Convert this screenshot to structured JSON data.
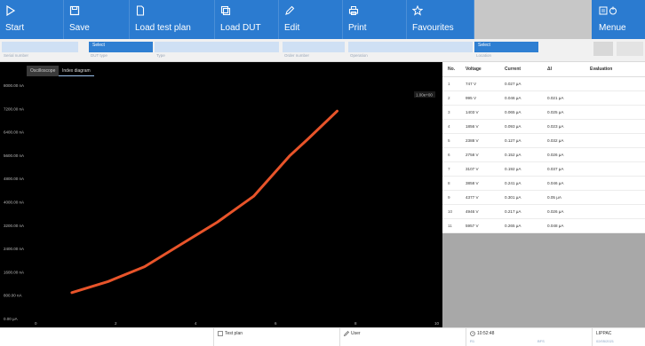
{
  "toolbar": {
    "buttons": [
      {
        "label": "Start",
        "icon": "play-icon"
      },
      {
        "label": "Save",
        "icon": "save-icon"
      },
      {
        "label": "Load test plan",
        "icon": "document-icon"
      },
      {
        "label": "Load DUT",
        "icon": "copy-icon"
      },
      {
        "label": "Edit",
        "icon": "pencil-icon"
      },
      {
        "label": "Print",
        "icon": "printer-icon"
      },
      {
        "label": "Favourites",
        "icon": "star-icon"
      },
      {
        "label": "Menue",
        "icon": "menu-power-icon"
      }
    ]
  },
  "fields": [
    {
      "value": "",
      "caption": "Serial number"
    },
    {
      "value": "Select",
      "caption": "DUT type"
    },
    {
      "value": "",
      "caption": "Type"
    },
    {
      "value": "",
      "caption": "Order number"
    },
    {
      "value": "",
      "caption": "Operation"
    },
    {
      "value": "Select",
      "caption": "Location"
    }
  ],
  "chart_tabs": [
    "Oscilloscope",
    "Index diagram"
  ],
  "chart_data": {
    "type": "line",
    "series": [
      {
        "values": [
          {
            "x": 1,
            "y": 700
          },
          {
            "x": 2,
            "y": 1000
          },
          {
            "x": 3,
            "y": 1400
          },
          {
            "x": 4,
            "y": 2000
          },
          {
            "x": 5,
            "y": 2600
          },
          {
            "x": 6,
            "y": 3300
          },
          {
            "x": 7,
            "y": 4400
          },
          {
            "x": 7.5,
            "y": 4850
          },
          {
            "x": 8.3,
            "y": 5600
          }
        ]
      }
    ],
    "color": "#e8542a",
    "ytick_labels": [
      "0.00 μA",
      "800.00 nA",
      "1600.00 nA",
      "2400.00 nA",
      "3200.00 nA",
      "4000.00 nA",
      "4800.00 nA",
      "5600.00 nA",
      "6400.00 nA",
      "7200.00 nA",
      "8000.00 nA"
    ],
    "xtick_labels": [
      "0",
      "2",
      "4",
      "6",
      "8",
      "10"
    ],
    "ylim": [
      0,
      6300
    ],
    "xlim": [
      0,
      11
    ],
    "grid": false,
    "badge": "1.00e+00"
  },
  "table": {
    "headers": [
      "No.",
      "Voltage",
      "Current",
      "ΔI",
      "Evaluation"
    ],
    "rows": [
      [
        "1",
        "747 V",
        "0.027 μA",
        "",
        ""
      ],
      [
        "2",
        "995 V",
        "0.046 μA",
        "0.021 μA",
        ""
      ],
      [
        "3",
        "1403 V",
        "0.065 μA",
        "0.025 μA",
        ""
      ],
      [
        "4",
        "1856 V",
        "0.093 μA",
        "0.023 μA",
        ""
      ],
      [
        "5",
        "2388 V",
        "0.127 μA",
        "0.032 μA",
        ""
      ],
      [
        "6",
        "2758 V",
        "0.152 μA",
        "0.026 μA",
        ""
      ],
      [
        "7",
        "3107 V",
        "0.192 μA",
        "0.037 μA",
        ""
      ],
      [
        "8",
        "3858 V",
        "0.241 μA",
        "0.046 μA",
        ""
      ],
      [
        "9",
        "4377 V",
        "0.301 μA",
        "0.05 μA",
        ""
      ],
      [
        "10",
        "4946 V",
        "0.217 μA",
        "0.026 μA",
        ""
      ],
      [
        "11",
        "5957 V",
        "0.265 μA",
        "0.048 μA",
        ""
      ]
    ]
  },
  "status": {
    "test_plan_label": "Test plan",
    "user_label": "User",
    "time": "10:52:48",
    "sub_a": "R1",
    "sub_b": "BFS",
    "right_1": "LIPPAC",
    "right_2": "02/05/2021"
  }
}
